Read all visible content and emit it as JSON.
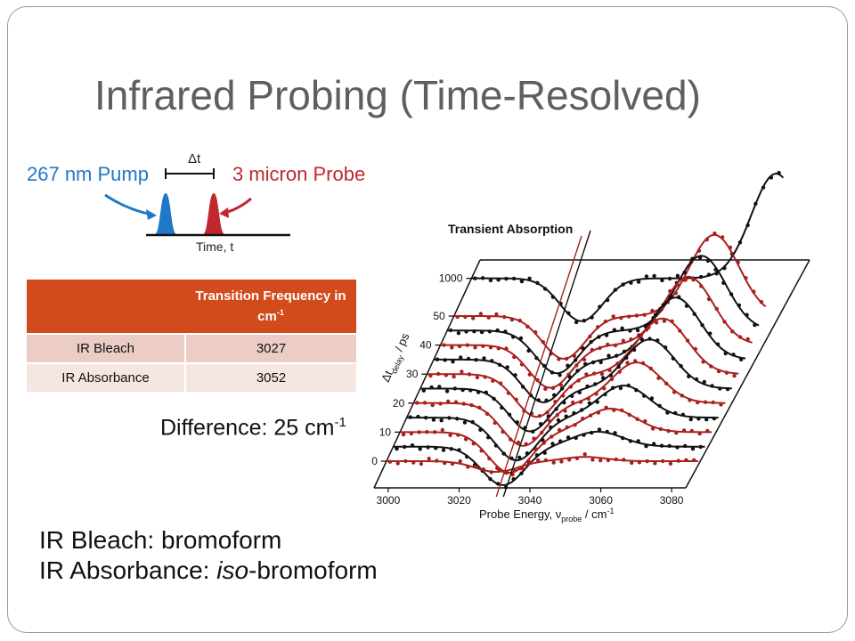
{
  "slide": {
    "title": "Infrared Probing (Time-Resolved)",
    "difference": {
      "text": "Difference: 25 cm",
      "superscript": "-1"
    },
    "species": [
      {
        "prefix": "IR Bleach: ",
        "italic": "",
        "suffix": "bromoform"
      },
      {
        "prefix": "IR Absorbance: ",
        "italic": "iso",
        "suffix": "-bromoform"
      }
    ]
  },
  "pump_probe_diagram": {
    "pump_label": "267 nm Pump",
    "probe_label": "3 micron Probe",
    "delay_label": "Δt",
    "axis_label": "Time, t",
    "pump_color": "#1f78c8",
    "probe_color": "#c0282d"
  },
  "frequency_table": {
    "header": {
      "col1": "",
      "col2_main": "Transition Frequency in cm",
      "col2_sup": "-1"
    },
    "rows": [
      {
        "label": "IR Bleach",
        "value": "3027"
      },
      {
        "label": "IR Absorbance",
        "value": "3052"
      }
    ]
  },
  "chart_data": {
    "type": "line",
    "title": "Transient Absorption",
    "xlabel": "Probe Energy, ν",
    "xlabel_sub": "probe",
    "xlabel_unit": " / cm",
    "xlabel_unit_sup": "-1",
    "ylabel": "Δt",
    "ylabel_sub": "delay",
    "ylabel_unit": " / ps",
    "x_ticks": [
      3000,
      3020,
      3040,
      3060,
      3080
    ],
    "xlim": [
      2996,
      3084
    ],
    "delay_ticks": [
      "1000",
      "50",
      "40",
      "30",
      "20",
      "10",
      "0"
    ],
    "colors": {
      "black": "#111111",
      "red": "#a8201f"
    },
    "series": [
      {
        "delay": 0,
        "color": "red",
        "bleach_center": 3027,
        "bleach_width": 6,
        "bleach_amp": 0.5,
        "abs_center": 3052,
        "abs_width": 6,
        "abs_amp": 0.2
      },
      {
        "delay": 5,
        "color": "black",
        "bleach_center": 3027,
        "bleach_width": 6,
        "bleach_amp": 1.8,
        "abs_center": 3052,
        "abs_width": 7,
        "abs_amp": 0.7
      },
      {
        "delay": 10,
        "color": "red",
        "bleach_center": 3027,
        "bleach_width": 6,
        "bleach_amp": 1.9,
        "abs_center": 3052,
        "abs_width": 7,
        "abs_amp": 1.1
      },
      {
        "delay": 15,
        "color": "black",
        "bleach_center": 3027,
        "bleach_width": 6,
        "bleach_amp": 2.0,
        "abs_center": 3052,
        "abs_width": 7,
        "abs_amp": 1.5
      },
      {
        "delay": 20,
        "color": "red",
        "bleach_center": 3027,
        "bleach_width": 6,
        "bleach_amp": 2.0,
        "abs_center": 3052,
        "abs_width": 7,
        "abs_amp": 1.9
      },
      {
        "delay": 25,
        "color": "black",
        "bleach_center": 3027,
        "bleach_width": 6,
        "bleach_amp": 2.0,
        "abs_center": 3052,
        "abs_width": 7,
        "abs_amp": 2.3
      },
      {
        "delay": 30,
        "color": "red",
        "bleach_center": 3027,
        "bleach_width": 6,
        "bleach_amp": 2.0,
        "abs_center": 3052,
        "abs_width": 7,
        "abs_amp": 2.6
      },
      {
        "delay": 35,
        "color": "black",
        "bleach_center": 3027,
        "bleach_width": 6,
        "bleach_amp": 2.0,
        "abs_center": 3052,
        "abs_width": 7,
        "abs_amp": 2.9
      },
      {
        "delay": 40,
        "color": "red",
        "bleach_center": 3027,
        "bleach_width": 6,
        "bleach_amp": 2.0,
        "abs_center": 3052,
        "abs_width": 7,
        "abs_amp": 3.2
      },
      {
        "delay": 45,
        "color": "black",
        "bleach_center": 3027,
        "bleach_width": 6,
        "bleach_amp": 2.0,
        "abs_center": 3052,
        "abs_width": 7,
        "abs_amp": 3.5
      },
      {
        "delay": 50,
        "color": "red",
        "bleach_center": 3027,
        "bleach_width": 6,
        "bleach_amp": 2.0,
        "abs_center": 3052,
        "abs_width": 7,
        "abs_amp": 3.8
      },
      {
        "delay": 1000,
        "color": "black",
        "bleach_center": 3027,
        "bleach_width": 6,
        "bleach_amp": 2.0,
        "abs_center": 3052,
        "abs_width": 7,
        "abs_amp": 4.9
      }
    ]
  }
}
